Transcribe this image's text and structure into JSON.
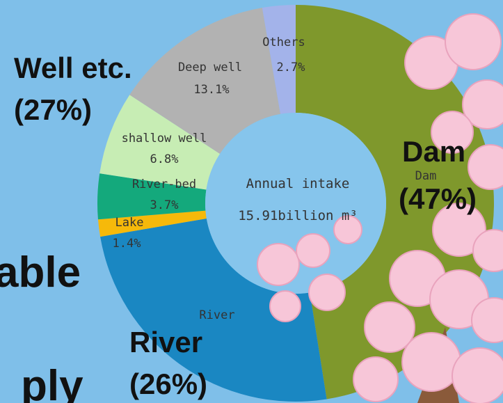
{
  "chart_data": {
    "type": "pie",
    "donut": true,
    "center_label": [
      "Annual intake",
      "15.91billion m³"
    ],
    "categories": [
      "Dam",
      "River",
      "Lake",
      "River-bed",
      "shallow well",
      "Deep well",
      "Others"
    ],
    "values": [
      47.5,
      24.8,
      1.4,
      3.7,
      6.8,
      13.1,
      2.7
    ],
    "value_labels": [
      null,
      null,
      "1.4%",
      "3.7%",
      "6.8%",
      "13.1%",
      "2.7%"
    ],
    "colors": [
      "#7f982c",
      "#1a87c2",
      "#f6b90a",
      "#14a97c",
      "#c7edb4",
      "#b2b2b2",
      "#a3b3ea"
    ],
    "annotations": [
      "Well etc.",
      "(27%)",
      "Dam",
      "(47%)",
      "River",
      "(26%)",
      "able",
      "ply"
    ]
  }
}
